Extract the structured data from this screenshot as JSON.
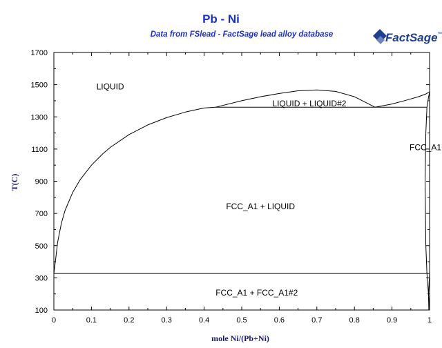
{
  "header": {
    "title": "Pb - Ni",
    "subtitle": "Data from FSlead - FactSage lead alloy database",
    "logo_text": "FactSage",
    "logo_trademark": "™"
  },
  "colors": {
    "title": "#1c2fd0",
    "axis_label": "#1a1a6e",
    "logo": "#1f3f8f",
    "lines": "#000000"
  },
  "chart_data": {
    "type": "line",
    "title": "Pb - Ni",
    "subtitle": "Data from FSlead - FactSage lead alloy database",
    "xlabel": "mole Ni/(Pb+Ni)",
    "ylabel": "T(C)",
    "xlim": [
      0,
      1
    ],
    "ylim": [
      100,
      1700
    ],
    "x_ticks": [
      0,
      0.1,
      0.2,
      0.3,
      0.4,
      0.5,
      0.6,
      0.7,
      0.8,
      0.9,
      1
    ],
    "x_tick_labels": [
      "0",
      "0.1",
      "0.2",
      "0.3",
      "0.4",
      "0.5",
      "0.6",
      "0.7",
      "0.8",
      "0.9",
      "1"
    ],
    "y_ticks": [
      100,
      300,
      500,
      700,
      900,
      1100,
      1300,
      1500,
      1700
    ],
    "y_tick_labels": [
      "100",
      "300",
      "500",
      "700",
      "900",
      "1100",
      "1300",
      "1500",
      "1700"
    ],
    "grid": false,
    "series": [
      {
        "x": [
          0.0,
          0.005,
          0.01,
          0.02,
          0.03,
          0.05,
          0.07,
          0.1,
          0.13,
          0.15,
          0.2,
          0.25,
          0.3,
          0.35,
          0.4,
          0.43
        ],
        "y": [
          327,
          420,
          520,
          640,
          720,
          830,
          910,
          1000,
          1070,
          1110,
          1190,
          1250,
          1295,
          1330,
          1355,
          1360
        ]
      },
      {
        "x": [
          0.43,
          0.5,
          0.55,
          0.6,
          0.65,
          0.7,
          0.75,
          0.8,
          0.83,
          0.855
        ],
        "y": [
          1360,
          1400,
          1425,
          1445,
          1462,
          1467,
          1458,
          1425,
          1390,
          1360
        ]
      },
      {
        "x": [
          0.855,
          0.9,
          0.94,
          0.97,
          0.99,
          1.0
        ],
        "y": [
          1360,
          1380,
          1405,
          1425,
          1442,
          1455
        ]
      },
      {
        "x": [
          0.43,
          0.993
        ],
        "y": [
          1360,
          1360
        ]
      },
      {
        "x": [
          0.0,
          1.0
        ],
        "y": [
          327,
          327
        ]
      },
      {
        "x": [
          0.993,
          0.99,
          0.988,
          0.99,
          0.993,
          0.997,
          1.0
        ],
        "y": [
          1360,
          1200,
          900,
          500,
          327,
          200,
          100
        ]
      },
      {
        "x": [
          0.993,
          0.997,
          1.0
        ],
        "y": [
          1360,
          1420,
          1455
        ]
      },
      {
        "x": [
          1.0,
          0.997,
          0.998
        ],
        "y": [
          327,
          200,
          100
        ]
      }
    ],
    "annotations": [
      {
        "text": "LIQUID",
        "x": 0.15,
        "y": 1488
      },
      {
        "text": "LIQUID + LIQUID#2",
        "x": 0.68,
        "y": 1383
      },
      {
        "text": "FCC_A1",
        "x": 1.0,
        "y": 1110
      },
      {
        "text": "FCC_A1 + LIQUID",
        "x": 0.55,
        "y": 743
      },
      {
        "text": "FCC_A1 + FCC_A1#2",
        "x": 0.54,
        "y": 208
      }
    ]
  }
}
